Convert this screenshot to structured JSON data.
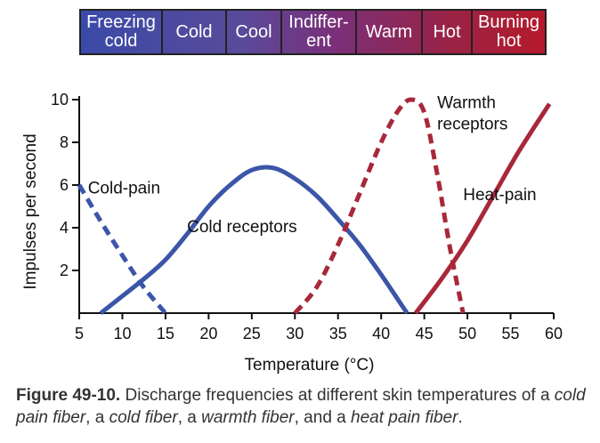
{
  "band": {
    "segments": [
      {
        "line1": "Freezing",
        "line2": "cold",
        "color": "#3a4aa8"
      },
      {
        "line1": "Cold",
        "line2": "",
        "color": "#4e4aa0"
      },
      {
        "line1": "Cool",
        "line2": "",
        "color": "#5e4896"
      },
      {
        "line1": "Indiffer-",
        "line2": "ent",
        "color": "#6e3a84"
      },
      {
        "line1": "Warm",
        "line2": "",
        "color": "#86285c"
      },
      {
        "line1": "Hot",
        "line2": "",
        "color": "#9a2246"
      },
      {
        "line1": "Burning",
        "line2": "hot",
        "color": "#b51a2a"
      }
    ]
  },
  "chart_data": {
    "type": "line",
    "title": "",
    "xlabel": "Temperature (°C)",
    "ylabel": "Impulses per second",
    "xlim": [
      5,
      60
    ],
    "ylim": [
      0,
      10
    ],
    "x_ticks": [
      "5",
      "10",
      "15",
      "20",
      "25",
      "30",
      "35",
      "40",
      "45",
      "50",
      "55",
      "60"
    ],
    "y_ticks": [
      "2",
      "4",
      "6",
      "8",
      "10"
    ],
    "series": [
      {
        "name": "Cold-pain",
        "color": "#3b56a8",
        "style": "dashed",
        "x": [
          5,
          7.5,
          10,
          12.5,
          15
        ],
        "y": [
          6,
          4.3,
          2.7,
          1.2,
          0
        ]
      },
      {
        "name": "Cold receptors",
        "color": "#3b56a8",
        "style": "solid",
        "x": [
          7.5,
          10,
          12.5,
          15,
          17.5,
          20,
          22.5,
          25,
          27.5,
          30,
          32.5,
          35,
          37.5,
          40,
          42.5,
          43
        ],
        "y": [
          0,
          0.8,
          1.6,
          2.5,
          3.7,
          5.0,
          6.0,
          6.7,
          6.8,
          6.3,
          5.5,
          4.4,
          3.2,
          1.8,
          0.3,
          0
        ]
      },
      {
        "name": "Warmth receptors",
        "color": "#a8283a",
        "style": "dashed",
        "x": [
          30,
          32.5,
          35,
          37.5,
          40,
          42,
          43.5,
          45,
          46.5,
          48,
          49.5
        ],
        "y": [
          0,
          1.2,
          3.2,
          5.6,
          8.0,
          9.5,
          10.0,
          9.4,
          6.5,
          3.0,
          0
        ]
      },
      {
        "name": "Heat-pain",
        "color": "#a8283a",
        "style": "solid",
        "x": [
          44,
          47,
          50,
          53,
          56,
          59.5
        ],
        "y": [
          0,
          1.6,
          3.4,
          5.5,
          7.6,
          9.8
        ]
      }
    ],
    "annotations": [
      {
        "text": "Cold-pain",
        "x": 6,
        "y": 5.6
      },
      {
        "text": "Cold receptors",
        "x": 17.5,
        "y": 3.8
      },
      {
        "text": "Warmth",
        "x": 46.5,
        "y": 9.6
      },
      {
        "text": "receptors",
        "x": 46.5,
        "y": 8.6
      },
      {
        "text": "Heat-pain",
        "x": 49.5,
        "y": 5.3
      }
    ]
  },
  "caption": {
    "label": "Figure 49-10.",
    "part1": " Discharge frequencies at different skin temperatures of a ",
    "term1": "cold pain fiber",
    "sep1": ", a ",
    "term2": "cold fiber",
    "sep2": ", a ",
    "term3": "warmth fiber",
    "sep3": ", and a ",
    "term4": "heat pain fiber",
    "end": "."
  }
}
